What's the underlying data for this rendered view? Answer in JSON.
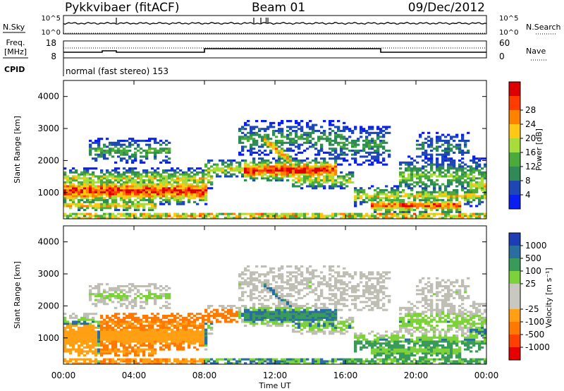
{
  "header": {
    "station": "Pykkvibaer (fitACF)",
    "beam": "Beam 01",
    "date": "09/Dec/2012"
  },
  "nsky_panel": {
    "left_label": "N.Sky",
    "right_label": "N.Search",
    "left_ticks": [
      "10^5",
      "10^0"
    ],
    "right_ticks": [
      "10^5",
      "10^0"
    ]
  },
  "freq_panel": {
    "left_label_1": "Freq.",
    "left_label_2": "[MHz]",
    "left_ticks": [
      "18",
      "8"
    ],
    "right_label": "Nave",
    "right_ticks": [
      "60",
      "0"
    ],
    "cpid_label": "CPID",
    "cpid_text": "normal (fast stereo) 153"
  },
  "chart_data": [
    {
      "type": "heatmap",
      "name": "power",
      "ylabel": "Slant Range [km]",
      "ylim": [
        180,
        4500
      ],
      "yticks": [
        1000,
        2000,
        3000,
        4000
      ],
      "xlim": [
        0,
        24
      ],
      "colorbar": {
        "label": "Power [dB]",
        "ticks": [
          "4",
          "8",
          "12",
          "16",
          "20",
          "24",
          "28"
        ],
        "colors": [
          "#0a1ef0",
          "#1e46b4",
          "#2f8a55",
          "#4caa3c",
          "#a8dc3c",
          "#ffc814",
          "#ff8200",
          "#ff3c00",
          "#dc0000"
        ]
      }
    },
    {
      "type": "heatmap",
      "name": "velocity",
      "ylabel": "Slant Range [km]",
      "ylim": [
        180,
        4500
      ],
      "yticks": [
        1000,
        2000,
        3000,
        4000
      ],
      "xlim": [
        0,
        24
      ],
      "colorbar": {
        "label": "Velocity [m s⁻¹]",
        "ticks": [
          "1000",
          "500",
          "100",
          "25",
          "-25",
          "-100",
          "-500",
          "-1000"
        ],
        "colors": [
          "#1e3cb4",
          "#2a6ea0",
          "#3a9a5a",
          "#7dd23c",
          "#c8c8c0",
          "#c8c8c0",
          "#ffa014",
          "#ff7800",
          "#ff4100",
          "#e60000"
        ]
      },
      "ground_scatter_color": "#bebeb4"
    }
  ],
  "xaxis": {
    "ticks": [
      "00:00",
      "04:00",
      "08:00",
      "12:00",
      "16:00",
      "20:00",
      "00:00"
    ],
    "label": "Time UT"
  }
}
